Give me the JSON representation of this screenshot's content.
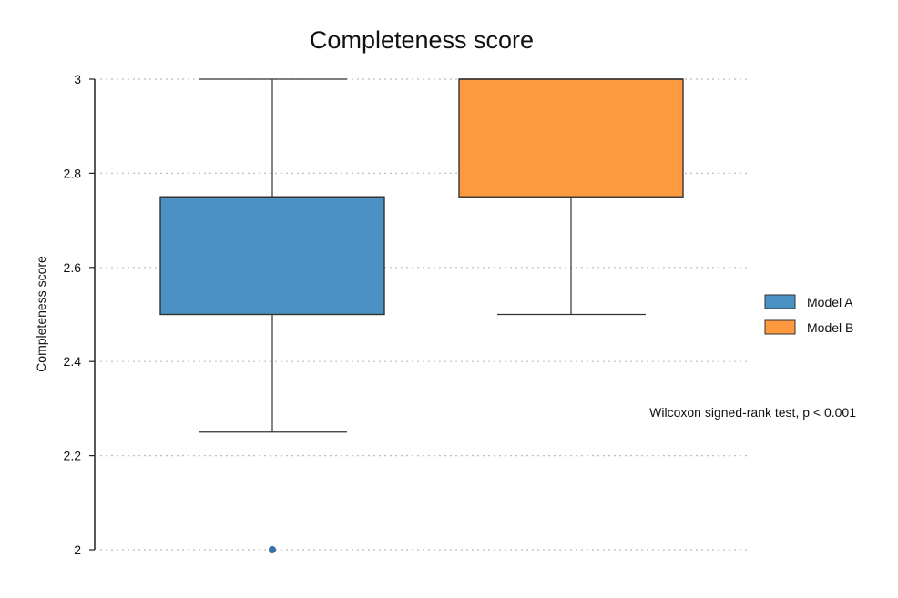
{
  "chart_data": {
    "type": "box",
    "title": "Completeness score",
    "xlabel": "",
    "ylabel": "Completeness score",
    "ylim": [
      2,
      3
    ],
    "yticks": [
      "2",
      "2.2",
      "2.4",
      "2.6",
      "2.8",
      "3"
    ],
    "ytick_values": [
      2,
      2.2,
      2.4,
      2.6,
      2.8,
      3
    ],
    "grid": "horizontal-dotted",
    "legend_position": "right",
    "series": [
      {
        "name": "Model A",
        "color": "#4a91c3",
        "whisker_low": 2.25,
        "q1": 2.5,
        "median": 2.75,
        "q3": 2.75,
        "whisker_high": 3.0,
        "outliers": [
          2.0
        ]
      },
      {
        "name": "Model B",
        "color": "#fd9a40",
        "whisker_low": 2.5,
        "q1": 2.75,
        "median": 3.0,
        "q3": 3.0,
        "whisker_high": 3.0,
        "outliers": []
      }
    ],
    "annotation": "Wilcoxon signed-rank test, p < 0.001"
  }
}
